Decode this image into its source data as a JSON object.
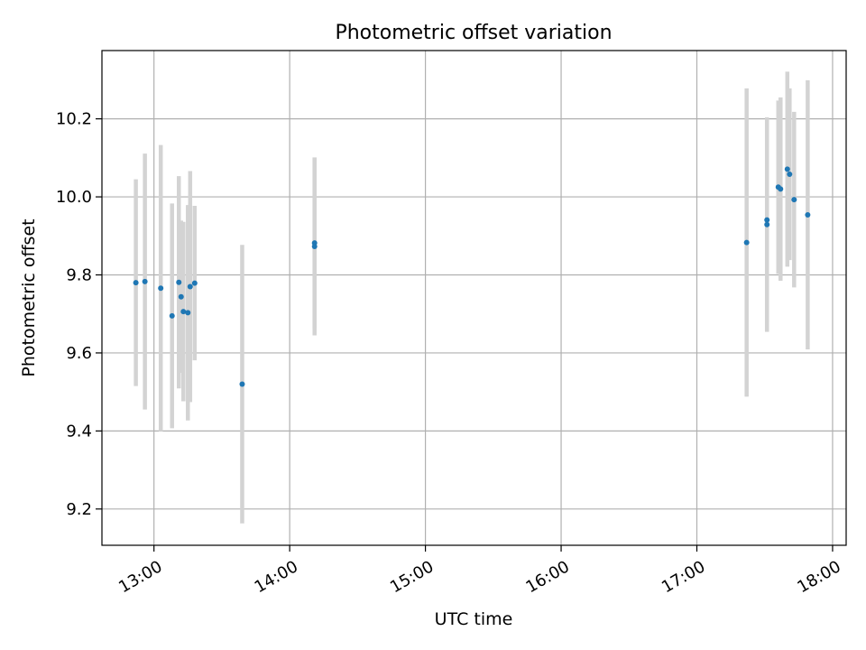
{
  "chart_data": {
    "type": "scatter",
    "title": "Photometric offset variation",
    "xlabel": "UTC time",
    "ylabel": "Photometric offset",
    "x_tick_labels": [
      "13:00",
      "14:00",
      "15:00",
      "16:00",
      "17:00",
      "18:00"
    ],
    "y_tick_labels": [
      "9.2",
      "9.4",
      "9.6",
      "9.8",
      "10.0",
      "10.2"
    ],
    "x_ticks": [
      "13:00",
      "14:00",
      "15:00",
      "16:00",
      "17:00",
      "18:00"
    ],
    "y_ticks": [
      9.2,
      9.4,
      9.6,
      9.8,
      10.0,
      10.2
    ],
    "xlim": [
      "12:37",
      "18:06"
    ],
    "ylim": [
      9.107,
      10.375
    ],
    "grid": true,
    "colors": {
      "point": "#1f77b4",
      "errorbar": "#d3d3d3",
      "grid": "#b0b0b0"
    },
    "points": [
      {
        "x": "12:52",
        "y": 9.78,
        "err": 0.265
      },
      {
        "x": "12:56",
        "y": 9.783,
        "err": 0.328
      },
      {
        "x": "13:03",
        "y": 9.766,
        "err": 0.367
      },
      {
        "x": "13:08",
        "y": 9.695,
        "err": 0.288
      },
      {
        "x": "13:11",
        "y": 9.781,
        "err": 0.272
      },
      {
        "x": "13:12",
        "y": 9.744,
        "err": 0.195
      },
      {
        "x": "13:13",
        "y": 9.706,
        "err": 0.23
      },
      {
        "x": "13:15",
        "y": 9.703,
        "err": 0.276
      },
      {
        "x": "13:16",
        "y": 9.77,
        "err": 0.296
      },
      {
        "x": "13:18",
        "y": 9.779,
        "err": 0.198
      },
      {
        "x": "13:39",
        "y": 9.52,
        "err": 0.357
      },
      {
        "x": "14:11",
        "y": 9.882,
        "err": 0.218
      },
      {
        "x": "14:11",
        "y": 9.873,
        "err": 0.228
      },
      {
        "x": "17:22",
        "y": 9.883,
        "err": 0.395
      },
      {
        "x": "17:31",
        "y": 9.929,
        "err": 0.275
      },
      {
        "x": "17:31",
        "y": 9.941,
        "err": 0.262
      },
      {
        "x": "17:36",
        "y": 10.025,
        "err": 0.222
      },
      {
        "x": "17:37",
        "y": 10.02,
        "err": 0.235
      },
      {
        "x": "17:40",
        "y": 10.071,
        "err": 0.25
      },
      {
        "x": "17:41",
        "y": 10.058,
        "err": 0.22
      },
      {
        "x": "17:43",
        "y": 9.993,
        "err": 0.225
      },
      {
        "x": "17:49",
        "y": 9.954,
        "err": 0.345
      }
    ]
  }
}
